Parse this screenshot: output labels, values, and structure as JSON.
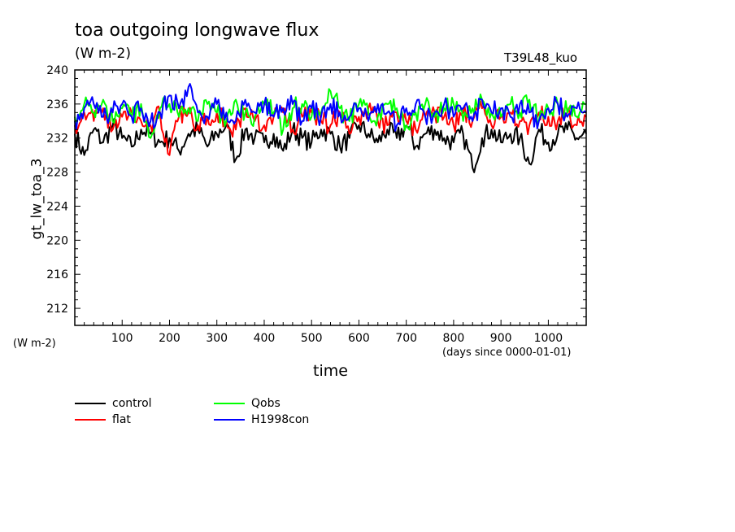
{
  "header": {
    "title": "toa outgoing longwave flux",
    "units": "(W m-2)",
    "run_label": "T39L48_kuo"
  },
  "axes": {
    "ylabel": "gt_lw_toa_3",
    "yunits": "(W m-2)",
    "xlabel": "time",
    "xunits": "(days since 0000-01-01)"
  },
  "chart_data": {
    "type": "line",
    "title": "toa outgoing longwave flux",
    "subtitle": "(W m-2)",
    "xlabel": "time",
    "ylabel": "gt_lw_toa_3",
    "xlim": [
      0,
      1080
    ],
    "ylim": [
      210,
      240
    ],
    "xticks": [
      100,
      200,
      300,
      400,
      500,
      600,
      700,
      800,
      900,
      1000
    ],
    "yticks": [
      212,
      216,
      220,
      224,
      228,
      232,
      236,
      240
    ],
    "grid": false,
    "legend_position": "bottom-left",
    "x": [
      0,
      20,
      40,
      60,
      80,
      100,
      120,
      140,
      160,
      180,
      200,
      220,
      240,
      260,
      280,
      300,
      320,
      340,
      360,
      380,
      400,
      420,
      440,
      460,
      480,
      500,
      520,
      540,
      560,
      580,
      600,
      620,
      640,
      660,
      680,
      700,
      720,
      740,
      760,
      780,
      800,
      820,
      840,
      860,
      880,
      900,
      920,
      940,
      960,
      980,
      1000,
      1020,
      1040,
      1060,
      1080
    ],
    "series": [
      {
        "name": "control",
        "color": "#000000",
        "values": [
          232.5,
          230.0,
          233.0,
          231.5,
          233.5,
          232.0,
          231.0,
          233.0,
          232.5,
          231.5,
          232.0,
          230.5,
          232.5,
          233.0,
          231.0,
          232.5,
          233.5,
          229.5,
          233.0,
          232.0,
          231.5,
          232.5,
          230.5,
          233.0,
          232.0,
          231.5,
          233.0,
          232.5,
          231.0,
          232.0,
          233.5,
          232.5,
          231.5,
          233.0,
          232.0,
          233.5,
          231.0,
          232.5,
          233.0,
          232.0,
          231.5,
          232.5,
          228.5,
          232.0,
          233.0,
          231.5,
          232.5,
          232.0,
          229.0,
          233.0,
          231.5,
          232.5,
          233.0,
          232.0,
          232.5
        ]
      },
      {
        "name": "flat",
        "color": "#ff0000",
        "values": [
          233.5,
          235.0,
          234.0,
          235.5,
          233.0,
          234.5,
          235.0,
          234.0,
          233.5,
          235.0,
          230.0,
          234.5,
          235.0,
          233.5,
          234.5,
          235.0,
          234.0,
          233.0,
          235.5,
          234.0,
          233.5,
          234.5,
          235.0,
          233.0,
          234.5,
          235.0,
          234.0,
          233.5,
          235.0,
          232.5,
          234.5,
          235.5,
          234.0,
          233.5,
          235.0,
          234.0,
          233.0,
          234.5,
          235.0,
          234.5,
          233.5,
          235.0,
          234.0,
          235.5,
          233.5,
          234.5,
          235.0,
          234.0,
          233.5,
          235.0,
          234.5,
          234.0,
          235.0,
          233.5,
          234.5
        ]
      },
      {
        "name": "Qobs",
        "color": "#00ff00",
        "values": [
          234.5,
          236.0,
          235.0,
          236.5,
          234.0,
          235.5,
          234.5,
          236.0,
          232.0,
          235.5,
          236.0,
          234.5,
          235.5,
          234.0,
          236.0,
          235.0,
          234.0,
          236.5,
          235.0,
          234.5,
          236.0,
          235.0,
          233.0,
          235.5,
          236.0,
          234.5,
          235.0,
          237.5,
          235.5,
          234.0,
          236.0,
          235.0,
          234.5,
          236.0,
          235.5,
          233.5,
          235.0,
          236.0,
          234.5,
          235.5,
          236.0,
          234.0,
          235.5,
          236.5,
          235.0,
          234.5,
          236.0,
          235.0,
          236.5,
          234.0,
          235.5,
          236.0,
          235.0,
          234.5,
          236.0
        ]
      },
      {
        "name": "H1998con",
        "color": "#0000ff",
        "values": [
          234.0,
          235.5,
          236.0,
          234.5,
          235.0,
          236.0,
          234.5,
          235.5,
          234.0,
          235.0,
          237.0,
          235.5,
          238.0,
          235.0,
          234.5,
          236.0,
          235.0,
          234.0,
          236.5,
          235.0,
          236.0,
          234.5,
          235.5,
          236.0,
          234.0,
          235.5,
          234.5,
          236.0,
          235.0,
          234.5,
          235.5,
          234.0,
          236.0,
          235.0,
          233.5,
          235.5,
          236.0,
          234.5,
          235.0,
          236.0,
          234.5,
          235.5,
          234.0,
          236.5,
          235.0,
          235.5,
          234.5,
          236.0,
          235.0,
          234.0,
          235.5,
          236.0,
          234.5,
          235.5,
          235.0
        ]
      }
    ]
  },
  "legend": {
    "items": [
      {
        "label": "control",
        "color": "#000000"
      },
      {
        "label": "Qobs",
        "color": "#00ff00"
      },
      {
        "label": "flat",
        "color": "#ff0000"
      },
      {
        "label": "H1998con",
        "color": "#0000ff"
      }
    ]
  }
}
